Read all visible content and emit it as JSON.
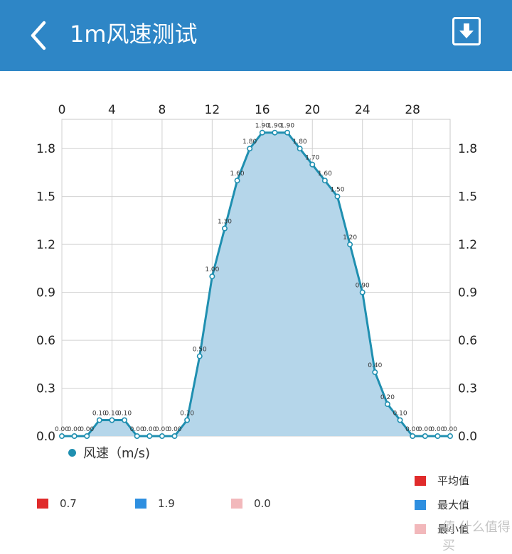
{
  "header": {
    "title": "1m风速测试",
    "back_icon": "chevron-left-icon",
    "download_icon": "download-icon",
    "bg_color": "#2e86c6"
  },
  "chart_data": {
    "type": "area",
    "x": [
      0,
      1,
      2,
      3,
      4,
      5,
      6,
      7,
      8,
      9,
      10,
      11,
      12,
      13,
      14,
      15,
      16,
      17,
      18,
      19,
      20,
      21,
      22,
      23,
      24,
      25,
      26,
      27,
      28,
      29,
      30,
      31
    ],
    "series": [
      {
        "name": "风速（m/s)",
        "values": [
          0,
          0,
          0,
          0.1,
          0.1,
          0.1,
          0,
          0,
          0,
          0,
          0.1,
          0.5,
          1,
          1.3,
          1.6,
          1.8,
          1.9,
          1.9,
          1.9,
          1.8,
          1.7,
          1.6,
          1.5,
          1.2,
          0.9,
          0.4,
          0.2,
          0.1,
          0,
          0,
          0,
          0
        ],
        "labels": [
          "0.00",
          "0.00",
          "0.00",
          "0.10",
          "0.10",
          "0.10",
          "0.00",
          "0.00",
          "0.00",
          "0.00",
          "0.10",
          "0.50",
          "1.00",
          "1.30",
          "1.60",
          "1.80",
          "1.90",
          "1.90",
          "1.90",
          "1.80",
          "1.70",
          "1.60",
          "1.50",
          "1.20",
          "0.90",
          "0.40",
          "0.20",
          "0.10",
          "0.00",
          "0.00",
          "0.00",
          "0.00"
        ],
        "color": "#1f8fb0",
        "fill": "#b5d6ea"
      }
    ],
    "xticks": [
      "0",
      "4",
      "8",
      "12",
      "16",
      "20",
      "24",
      "28"
    ],
    "xtick_values": [
      0,
      4,
      8,
      12,
      16,
      20,
      24,
      28
    ],
    "yticks": [
      "0.0",
      "0.3",
      "0.6",
      "0.9",
      "1.2",
      "1.5",
      "1.8"
    ],
    "ytick_values": [
      0,
      0.3,
      0.6,
      0.9,
      1.2,
      1.5,
      1.8
    ],
    "xlim": [
      0,
      31
    ],
    "ylim": [
      0,
      1.9833
    ],
    "grid": true,
    "x_axis_position": "top",
    "y_axis": "both sides",
    "legend": "bottom-left"
  },
  "legend": {
    "label": "风速（m/s)"
  },
  "stats": [
    {
      "value": "0.7",
      "color": "#e02b2b"
    },
    {
      "value": "1.9",
      "color": "#2e8fe0"
    },
    {
      "value": "0.0",
      "color": "#f2b8bb"
    }
  ],
  "keys": [
    {
      "label": "平均值",
      "color": "#e02b2b"
    },
    {
      "label": "最大值",
      "color": "#2e8fe0"
    },
    {
      "label": "最小值",
      "color": "#f2b8bb"
    }
  ],
  "watermark": "值 什么值得买"
}
